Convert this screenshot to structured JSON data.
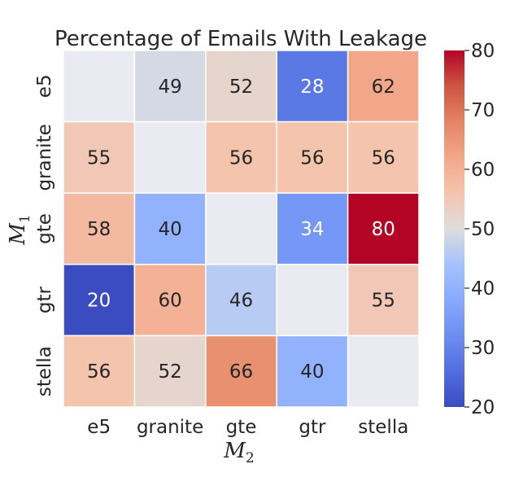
{
  "chart_data": {
    "type": "heatmap",
    "title": "Percentage of Emails With Leakage",
    "xlabel": "M_2",
    "ylabel": "M_1",
    "xlabel_main": "M",
    "xlabel_sub": "2",
    "ylabel_main": "M",
    "ylabel_sub": "1",
    "x_categories": [
      "e5",
      "granite",
      "gte",
      "gtr",
      "stella"
    ],
    "y_categories": [
      "e5",
      "granite",
      "gte",
      "gtr",
      "stella"
    ],
    "values": [
      [
        null,
        49,
        52,
        28,
        62
      ],
      [
        55,
        null,
        56,
        56,
        56
      ],
      [
        58,
        40,
        null,
        34,
        80
      ],
      [
        20,
        60,
        46,
        null,
        55
      ],
      [
        56,
        52,
        66,
        40,
        null
      ]
    ],
    "colormap": "coolwarm",
    "vmin": 20,
    "vmax": 80,
    "colorbar_ticks": [
      20,
      30,
      40,
      50,
      60,
      70,
      80
    ],
    "missing_color": "#eaeaf2",
    "grid_line_color": "#ffffff"
  }
}
